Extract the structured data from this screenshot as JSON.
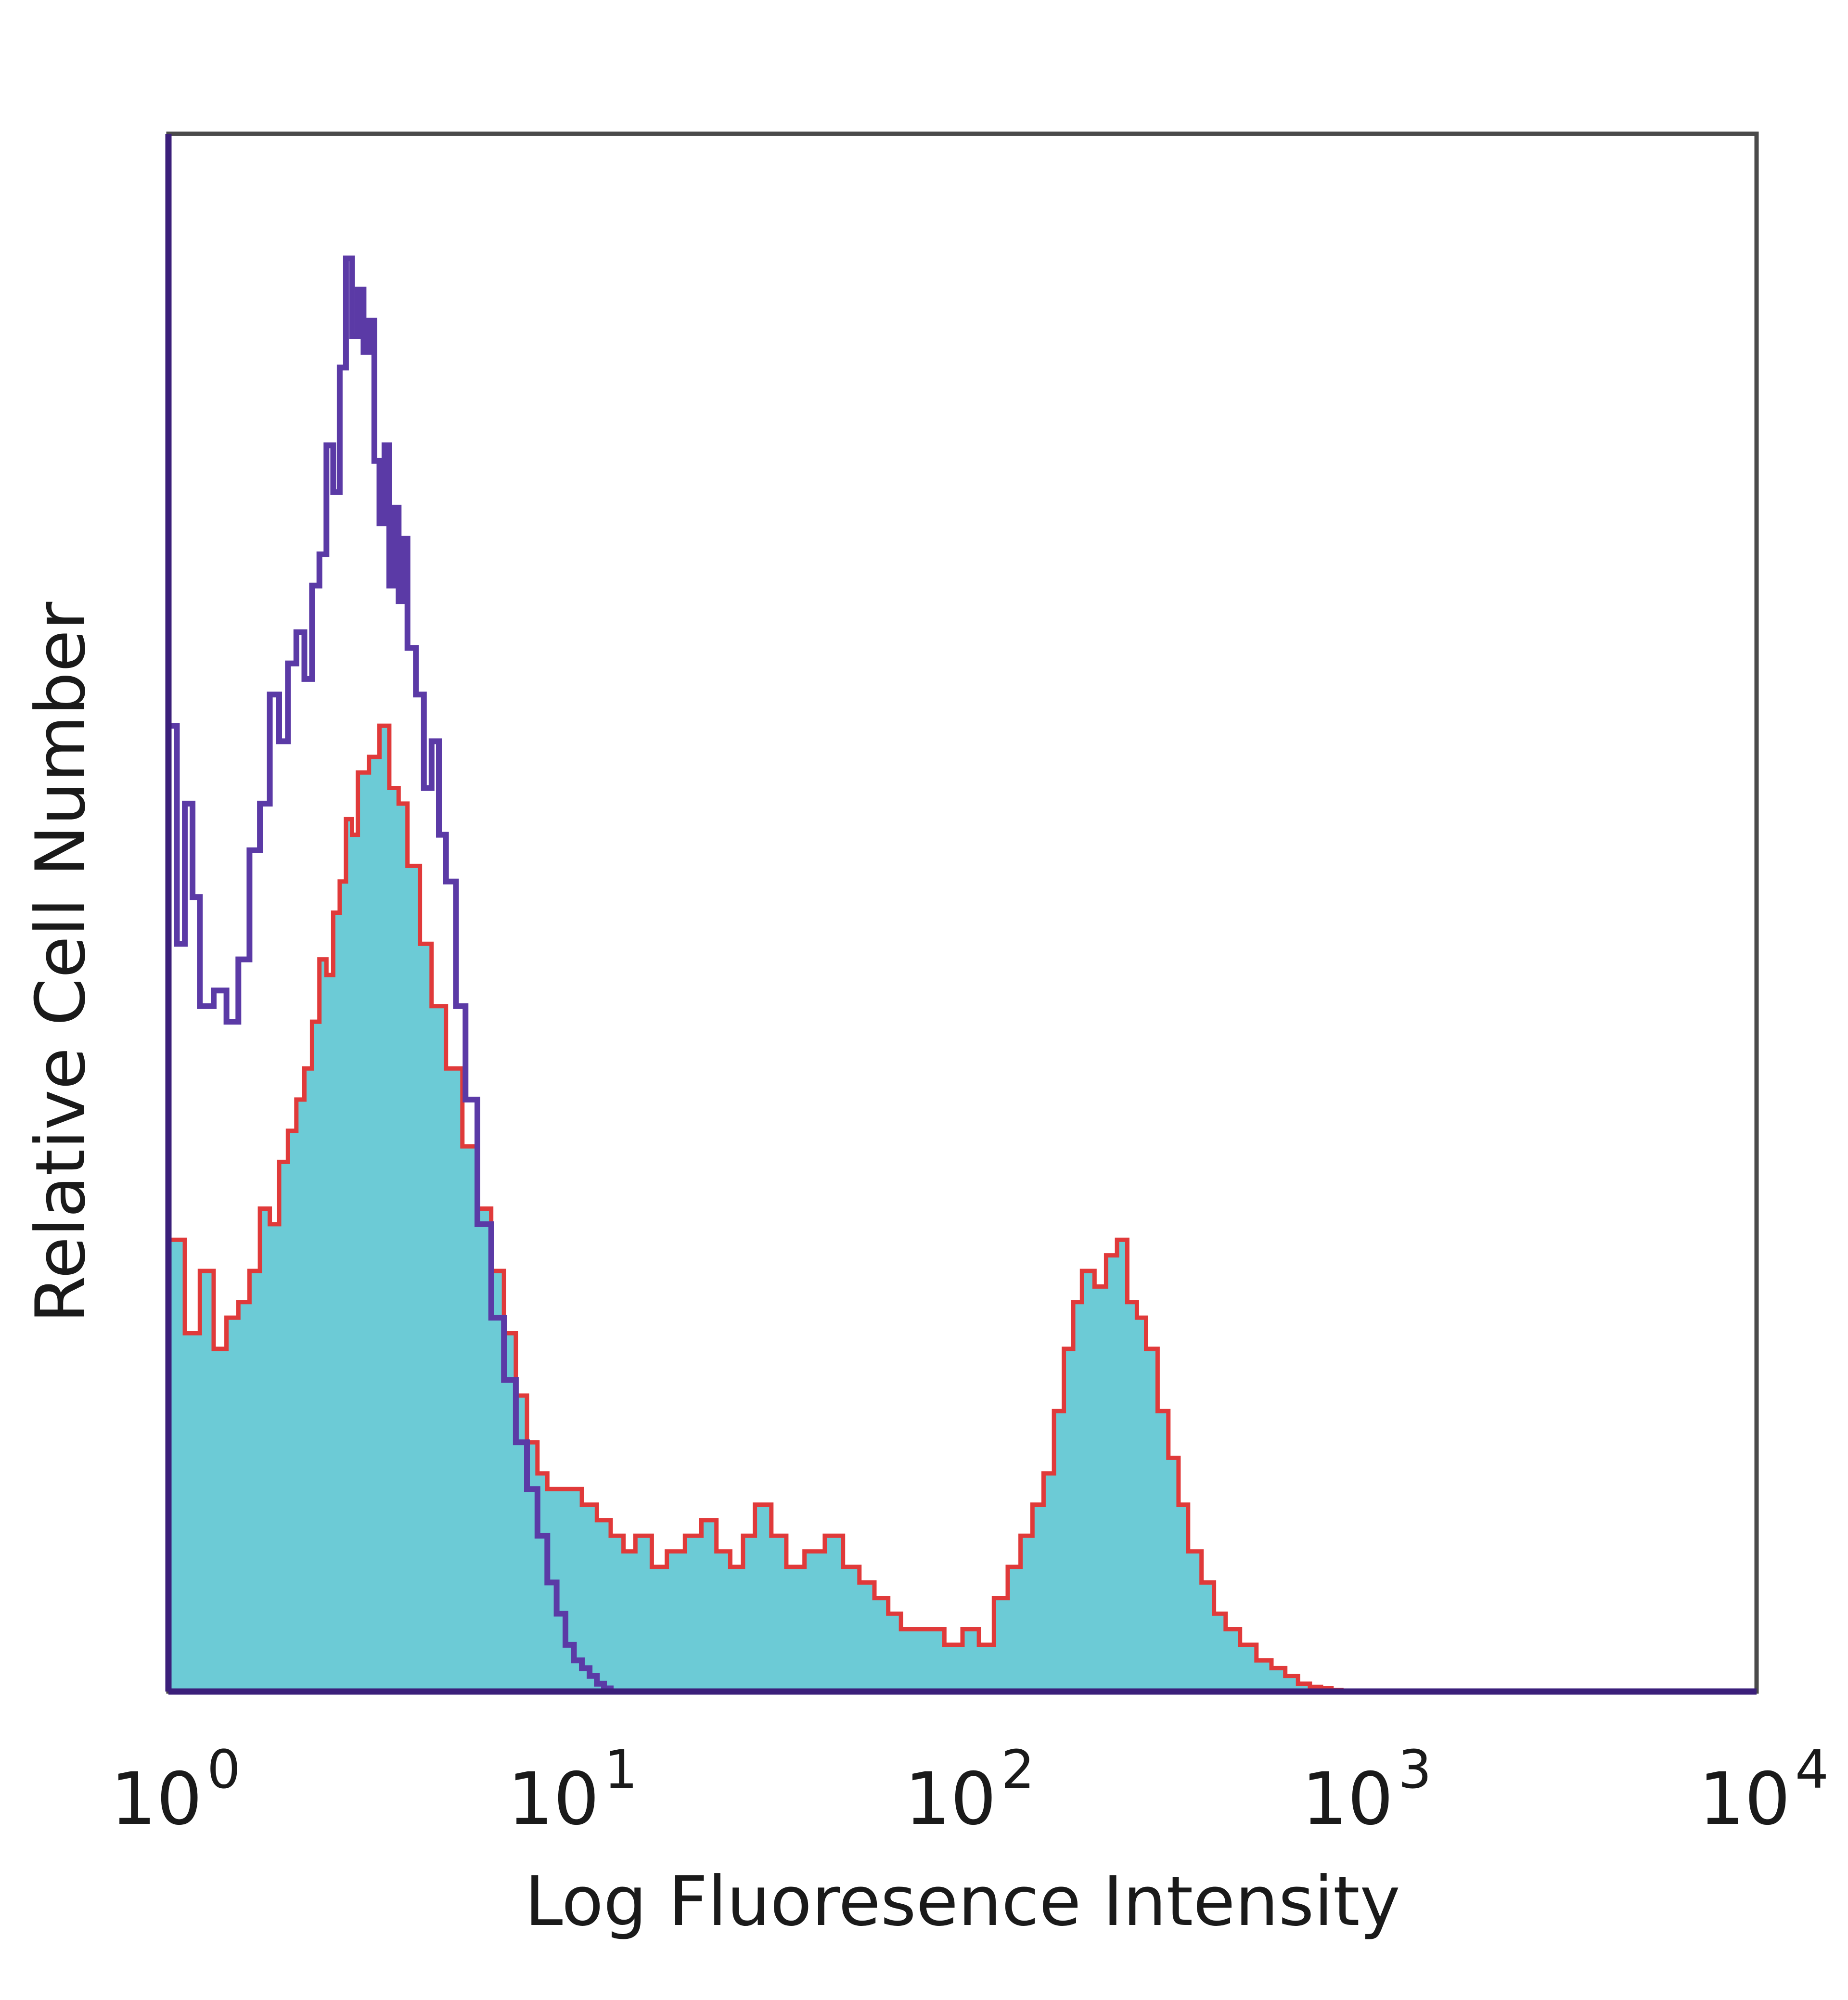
{
  "chart_data": {
    "type": "area",
    "xlabel": "Log Fluoresence Intensity",
    "ylabel": "Relative Cell Number",
    "x_scale": "log",
    "xlim": [
      1,
      10000
    ],
    "ylim": [
      0,
      100
    ],
    "grid": false,
    "x_ticks": [
      {
        "base": "10",
        "exp": "0",
        "value": 1
      },
      {
        "base": "10",
        "exp": "1",
        "value": 10
      },
      {
        "base": "10",
        "exp": "2",
        "value": 100
      },
      {
        "base": "10",
        "exp": "3",
        "value": 1000
      },
      {
        "base": "10",
        "exp": "4",
        "value": 10000
      }
    ],
    "colors": {
      "frame": "#4a4a4a",
      "baseline": "#3b1f7a",
      "isotype": "#5b3aa6",
      "stained_fill": "#6ccbd6",
      "stained_line": "#e03a3a"
    },
    "series": [
      {
        "style": "line",
        "color": "#5b3aa6",
        "x": [
          1.0,
          1.05,
          1.1,
          1.15,
          1.2,
          1.3,
          1.4,
          1.5,
          1.6,
          1.7,
          1.8,
          1.9,
          2.0,
          2.1,
          2.2,
          2.3,
          2.4,
          2.5,
          2.6,
          2.7,
          2.8,
          2.9,
          3.0,
          3.1,
          3.2,
          3.3,
          3.4,
          3.5,
          3.6,
          3.7,
          3.8,
          3.9,
          4.0,
          4.2,
          4.4,
          4.6,
          4.8,
          5.0,
          5.3,
          5.6,
          6.0,
          6.5,
          7.0,
          7.5,
          8.0,
          8.5,
          9.0,
          9.5,
          10.0,
          10.5,
          11.0,
          11.5,
          12.0,
          12.5,
          13.0
        ],
        "y": [
          62,
          48,
          57,
          51,
          44,
          45,
          43,
          47,
          54,
          57,
          64,
          61,
          66,
          68,
          65,
          71,
          73,
          80,
          77,
          85,
          92,
          87,
          90,
          86,
          88,
          79,
          75,
          80,
          71,
          76,
          70,
          74,
          67,
          64,
          58,
          61,
          55,
          52,
          44,
          38,
          30,
          24,
          20,
          16,
          13,
          10,
          7,
          5,
          3,
          2,
          1.5,
          1,
          0.5,
          0.2,
          0
        ]
      },
      {
        "style": "filled-area",
        "color": "#e03a3a",
        "fill": "#6ccbd6",
        "x": [
          1.0,
          1.1,
          1.2,
          1.3,
          1.4,
          1.5,
          1.6,
          1.7,
          1.8,
          1.9,
          2.0,
          2.1,
          2.2,
          2.3,
          2.4,
          2.5,
          2.6,
          2.7,
          2.8,
          2.9,
          3.0,
          3.2,
          3.4,
          3.6,
          3.8,
          4.0,
          4.3,
          4.6,
          5.0,
          5.5,
          6.0,
          6.5,
          7.0,
          7.5,
          8.0,
          8.5,
          9.0,
          10.0,
          11.0,
          12.0,
          13.0,
          14.0,
          15.0,
          16.5,
          18.0,
          20.0,
          22.0,
          24.0,
          26.0,
          28.0,
          30.0,
          33.0,
          36.0,
          40.0,
          45.0,
          50.0,
          55.0,
          60.0,
          65.0,
          70.0,
          80.0,
          90.0,
          100.0,
          110.0,
          120.0,
          130.0,
          140.0,
          150.0,
          160.0,
          170.0,
          180.0,
          190.0,
          200.0,
          215.0,
          230.0,
          245.0,
          260.0,
          275.0,
          290.0,
          310.0,
          330.0,
          350.0,
          370.0,
          400.0,
          430.0,
          460.0,
          500.0,
          550.0,
          600.0,
          650.0,
          700.0,
          750.0,
          800.0,
          850.0,
          900.0,
          950.0,
          1000.0
        ],
        "y": [
          29,
          23,
          27,
          22,
          24,
          25,
          27,
          31,
          30,
          34,
          36,
          38,
          40,
          43,
          47,
          46,
          50,
          52,
          56,
          55,
          59,
          60,
          62,
          58,
          57,
          53,
          48,
          44,
          40,
          35,
          31,
          27,
          23,
          19,
          16,
          14,
          13,
          13,
          12,
          11,
          10,
          9,
          10,
          8,
          9,
          10,
          11,
          9,
          8,
          10,
          12,
          10,
          8,
          9,
          10,
          8,
          7,
          6,
          5,
          4,
          4,
          3,
          4,
          3,
          6,
          8,
          10,
          12,
          14,
          18,
          22,
          25,
          27,
          26,
          28,
          29,
          25,
          24,
          22,
          18,
          15,
          12,
          9,
          7,
          5,
          4,
          3,
          2,
          1.5,
          1,
          0.5,
          0.3,
          0.2,
          0.1,
          0,
          0,
          0
        ]
      }
    ]
  }
}
